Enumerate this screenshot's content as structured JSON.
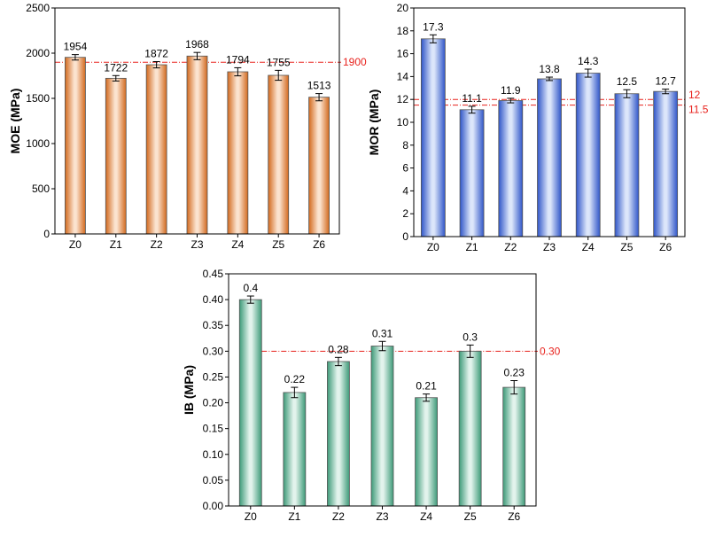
{
  "chart_data": [
    {
      "id": "moe",
      "type": "bar",
      "categories": [
        "Z0",
        "Z1",
        "Z2",
        "Z3",
        "Z4",
        "Z5",
        "Z6"
      ],
      "values": [
        1954,
        1722,
        1872,
        1968,
        1794,
        1755,
        1513
      ],
      "value_labels": [
        "1954",
        "1722",
        "1872",
        "1968",
        "1794",
        "1755",
        "1513"
      ],
      "errors": [
        30,
        30,
        35,
        40,
        45,
        55,
        40
      ],
      "ylabel": "MOE (MPa)",
      "xlabel": "",
      "ylim": [
        0,
        2500
      ],
      "yticks": [
        0,
        500,
        1000,
        1500,
        2000,
        2500
      ],
      "ytick_labels": [
        "0",
        "500",
        "1000",
        "1500",
        "2000",
        "2500"
      ],
      "reference_lines": [
        {
          "value": 1900,
          "label": "1900"
        }
      ],
      "bar_color": "#D2691E",
      "bar_highlight": "#FBE3CF",
      "reference_color": "#E8231E"
    },
    {
      "id": "mor",
      "type": "bar",
      "categories": [
        "Z0",
        "Z1",
        "Z2",
        "Z3",
        "Z4",
        "Z5",
        "Z6"
      ],
      "values": [
        17.3,
        11.1,
        11.9,
        13.8,
        14.3,
        12.5,
        12.7
      ],
      "value_labels": [
        "17.3",
        "11.1",
        "11.9",
        "13.8",
        "14.3",
        "12.5",
        "12.7"
      ],
      "errors": [
        0.35,
        0.3,
        0.2,
        0.15,
        0.35,
        0.35,
        0.2
      ],
      "ylabel": "MOR (MPa)",
      "xlabel": "",
      "ylim": [
        0,
        20
      ],
      "yticks": [
        0,
        2,
        4,
        6,
        8,
        10,
        12,
        14,
        16,
        18,
        20
      ],
      "ytick_labels": [
        "0",
        "2",
        "4",
        "6",
        "8",
        "10",
        "12",
        "14",
        "16",
        "18",
        "20"
      ],
      "reference_lines": [
        {
          "value": 12,
          "label": "12"
        },
        {
          "value": 11.5,
          "label": "11.5"
        }
      ],
      "bar_color": "#2F55C8",
      "bar_highlight": "#DCE6FA",
      "reference_color": "#E8231E"
    },
    {
      "id": "ib",
      "type": "bar",
      "categories": [
        "Z0",
        "Z1",
        "Z2",
        "Z3",
        "Z4",
        "Z5",
        "Z6"
      ],
      "values": [
        0.4,
        0.22,
        0.28,
        0.31,
        0.21,
        0.3,
        0.23
      ],
      "value_labels": [
        "0.4",
        "0.22",
        "0.28",
        "0.31",
        "0.21",
        "0.3",
        "0.23"
      ],
      "errors": [
        0.007,
        0.01,
        0.008,
        0.009,
        0.007,
        0.012,
        0.013
      ],
      "ylabel": "IB (MPa)",
      "xlabel": "",
      "ylim": [
        0,
        0.45
      ],
      "yticks": [
        0,
        0.05,
        0.1,
        0.15,
        0.2,
        0.25,
        0.3,
        0.35,
        0.4,
        0.45
      ],
      "ytick_labels": [
        "0.00",
        "0.05",
        "0.10",
        "0.15",
        "0.20",
        "0.25",
        "0.30",
        "0.35",
        "0.40",
        "0.45"
      ],
      "reference_lines": [
        {
          "value": 0.3,
          "label": "0.30"
        }
      ],
      "bar_color": "#3D9A78",
      "bar_highlight": "#E2F3EC",
      "reference_color": "#E8231E"
    }
  ]
}
